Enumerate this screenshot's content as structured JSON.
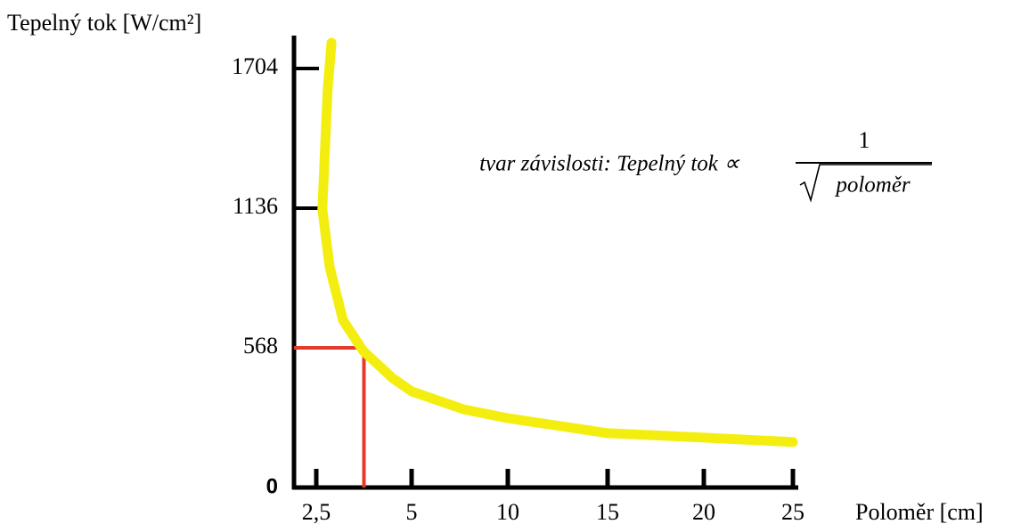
{
  "chart_data": {
    "type": "line",
    "y_label": "Tepelný tok [W/cm²]",
    "x_label": "Poloměr [cm]",
    "annotation": {
      "text": "tvar závislosti: Tepelný tok ∝",
      "numerator": "1",
      "denominator": "poloměr"
    },
    "series": [
      {
        "name": "Tepelný tok",
        "color": "#f4ee10",
        "x": [
          2.9,
          2.8,
          2.66,
          2.85,
          3.2,
          3.74,
          4.5,
          5,
          7.7,
          10,
          15,
          20,
          25
        ],
        "values": [
          1809,
          1621,
          1132,
          897,
          680,
          554,
          445,
          391,
          318,
          282,
          221,
          203,
          185
        ]
      }
    ],
    "guide": {
      "x": 3.75,
      "y": 568,
      "color": "#e53a2a"
    },
    "xticks": [
      {
        "value": 2.5,
        "label": "2,5"
      },
      5,
      10,
      15,
      20,
      25
    ],
    "ylim": [
      0,
      1838
    ],
    "yticks": [
      0,
      568,
      1136,
      1704
    ]
  }
}
